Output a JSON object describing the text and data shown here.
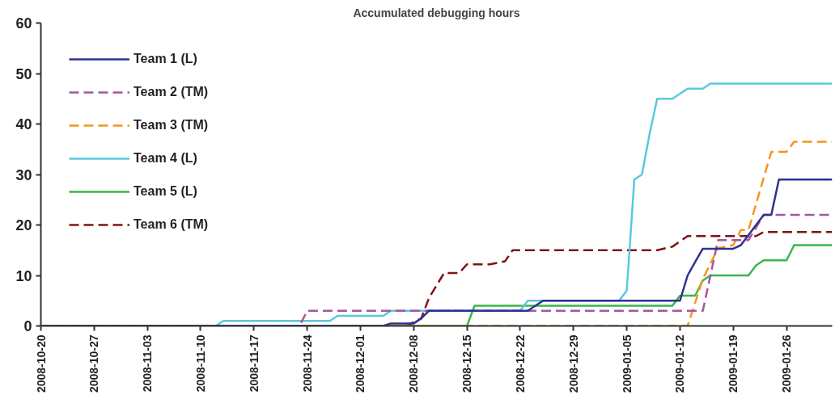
{
  "chart_data": {
    "type": "line",
    "title": "Accumulated debugging hours",
    "xlim": [
      "2008-10-20",
      "2009-02-01"
    ],
    "xticks": [
      "2008-10-20",
      "2008-10-27",
      "2008-11-03",
      "2008-11-10",
      "2008-11-17",
      "2008-11-24",
      "2008-12-01",
      "2008-12-08",
      "2008-12-15",
      "2008-12-22",
      "2008-12-29",
      "2009-01-05",
      "2009-01-12",
      "2009-01-19",
      "2009-01-26"
    ],
    "ylim": [
      0,
      60
    ],
    "yticks": [
      0,
      10,
      20,
      30,
      40,
      50,
      60
    ],
    "grid": false,
    "legend": "top left",
    "marker": "none",
    "series": [
      {
        "name": "Team 1 (L)",
        "color": "#2e3192",
        "line_style": "solid",
        "x": [
          "2008-10-20",
          "2008-12-04",
          "2008-12-05",
          "2008-12-08",
          "2008-12-09",
          "2008-12-10",
          "2008-12-23",
          "2008-12-25",
          "2009-01-12",
          "2009-01-13",
          "2009-01-14",
          "2009-01-15",
          "2009-01-19",
          "2009-01-20",
          "2009-01-23",
          "2009-01-24",
          "2009-01-25",
          "2009-02-01"
        ],
        "values": [
          0,
          0,
          0.5,
          0.5,
          1.5,
          3,
          3,
          5,
          5,
          10,
          12.7,
          15.3,
          15.3,
          16,
          22,
          22,
          29,
          29
        ]
      },
      {
        "name": "Team 2 (TM)",
        "color": "#a855a0",
        "line_style": "dashed",
        "x": [
          "2008-10-20",
          "2008-11-23",
          "2008-11-24",
          "2009-01-15",
          "2009-01-17",
          "2009-01-21",
          "2009-01-23",
          "2009-02-01"
        ],
        "values": [
          0,
          0,
          3,
          3,
          17,
          17,
          22,
          22
        ]
      },
      {
        "name": "Team 3 (TM)",
        "color": "#f7941d",
        "line_style": "dashed",
        "x": [
          "2008-10-20",
          "2009-01-13",
          "2009-01-15",
          "2009-01-17",
          "2009-01-19",
          "2009-01-20",
          "2009-01-21",
          "2009-01-24",
          "2009-01-26",
          "2009-01-27",
          "2009-02-01"
        ],
        "values": [
          0,
          0,
          9.3,
          15.4,
          16,
          19,
          19,
          34.5,
          34.5,
          36.5,
          36.5
        ]
      },
      {
        "name": "Team 4 (L)",
        "color": "#5bc8dc",
        "line_style": "solid",
        "x": [
          "2008-10-20",
          "2008-11-12",
          "2008-11-13",
          "2008-11-27",
          "2008-11-28",
          "2008-12-04",
          "2008-12-05",
          "2008-12-22",
          "2008-12-23",
          "2009-01-04",
          "2009-01-05",
          "2009-01-06",
          "2009-01-07",
          "2009-01-08",
          "2009-01-09",
          "2009-01-11",
          "2009-01-13",
          "2009-01-15",
          "2009-01-16",
          "2009-02-01"
        ],
        "values": [
          0,
          0,
          1,
          1,
          2,
          2,
          3,
          3,
          5,
          5,
          7,
          29,
          30,
          38,
          45,
          45,
          47,
          47,
          48,
          48
        ]
      },
      {
        "name": "Team 5 (L)",
        "color": "#3ab54a",
        "line_style": "solid",
        "x": [
          "2008-10-20",
          "2008-12-15",
          "2008-12-16",
          "2009-01-11",
          "2009-01-12",
          "2009-01-14",
          "2009-01-15",
          "2009-01-16",
          "2009-01-21",
          "2009-01-22",
          "2009-01-23",
          "2009-01-26",
          "2009-01-27",
          "2009-02-01"
        ],
        "values": [
          0,
          0,
          4,
          4,
          6,
          6,
          9,
          10,
          10,
          12,
          13,
          13,
          16,
          16
        ]
      },
      {
        "name": "Team 6 (TM)",
        "color": "#7f1416",
        "line_style": "dashed",
        "x": [
          "2008-10-20",
          "2008-12-07",
          "2008-12-09",
          "2008-12-10",
          "2008-12-12",
          "2008-12-14",
          "2008-12-15",
          "2008-12-18",
          "2008-12-20",
          "2008-12-21",
          "2009-01-09",
          "2009-01-11",
          "2009-01-13",
          "2009-01-22",
          "2009-01-23",
          "2009-02-01"
        ],
        "values": [
          0,
          0,
          1.5,
          5.5,
          10.5,
          10.5,
          12.2,
          12.2,
          12.8,
          15,
          15,
          15.7,
          17.8,
          17.8,
          18.6,
          18.6
        ]
      }
    ]
  }
}
